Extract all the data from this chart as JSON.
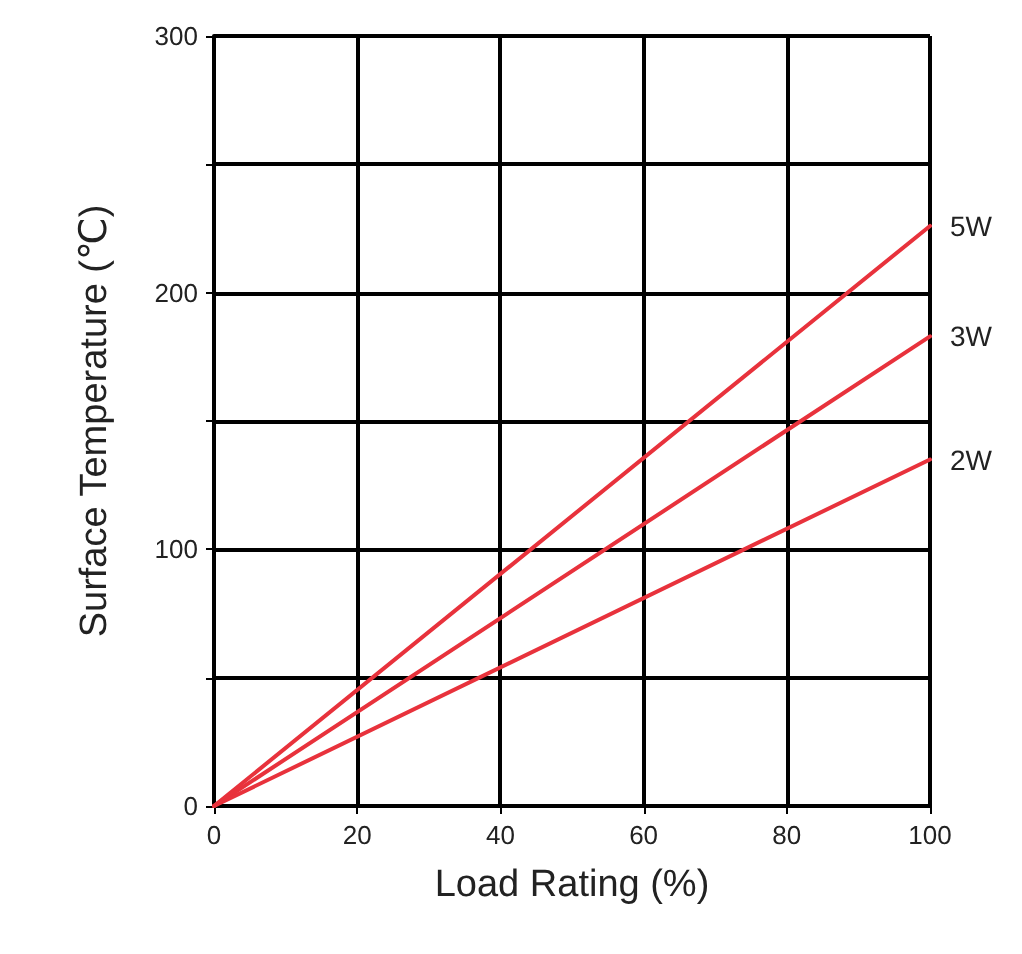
{
  "chart_data": {
    "type": "line",
    "xlabel": "Load Rating (%)",
    "ylabel": "Surface Temperature (℃)",
    "x": [
      0,
      100
    ],
    "series": [
      {
        "name": "5W",
        "color": "#e8323c",
        "values": [
          0,
          226
        ]
      },
      {
        "name": "3W",
        "color": "#e8323c",
        "values": [
          0,
          183
        ]
      },
      {
        "name": "2W",
        "color": "#e8323c",
        "values": [
          0,
          135
        ]
      }
    ],
    "xlim": [
      0,
      100
    ],
    "xticks": [
      0,
      20,
      40,
      60,
      80,
      100
    ],
    "ylim": [
      0,
      300
    ],
    "yticks": [
      0,
      {
        "value": 50,
        "label": null
      },
      100,
      {
        "value": 150,
        "label": null
      },
      200,
      {
        "value": 250,
        "label": null
      },
      300
    ],
    "grid": true,
    "marker": "none",
    "line_style": "solid",
    "legend": false
  }
}
